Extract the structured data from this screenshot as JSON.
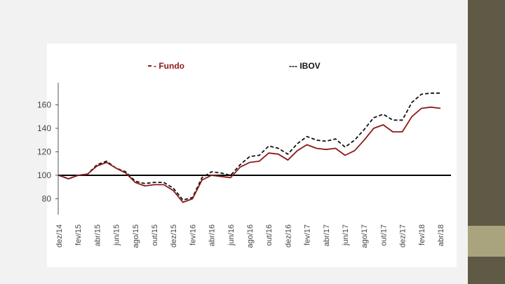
{
  "slide": {
    "background": "#f2f2f2",
    "sidebar_color": "#5f5a45",
    "sidebar_accent_color": "#a9a47d"
  },
  "chart_data": {
    "type": "line",
    "title": "",
    "xlabel": "",
    "ylabel": "",
    "ylim": [
      70,
      180
    ],
    "y_ticks": [
      80,
      100,
      120,
      140,
      160
    ],
    "x_tick_labels": [
      "dez/14",
      "fev/15",
      "abr/15",
      "jun/15",
      "ago/15",
      "out/15",
      "dez/15",
      "fev/16",
      "abr/16",
      "jun/16",
      "ago/16",
      "out/16",
      "dez/16",
      "fev/17",
      "abr/17",
      "jun/17",
      "ago/17",
      "out/17",
      "dez/17",
      "fev/18",
      "abr/18"
    ],
    "reference_line": 100,
    "legend_position": "top",
    "series": [
      {
        "name": "Fundo",
        "color": "#8b1a1a",
        "style": "solid",
        "legend_label": "- Fundo",
        "values": [
          100,
          97,
          100,
          101,
          108,
          111,
          106,
          102,
          94,
          91,
          92,
          92,
          87,
          77,
          80,
          96,
          100,
          99,
          98,
          107,
          111,
          112,
          119,
          118,
          113,
          121,
          126,
          123,
          122,
          123,
          117,
          121,
          130,
          140,
          143,
          137,
          137,
          150,
          157,
          158,
          157
        ]
      },
      {
        "name": "IBOV",
        "color": "#111111",
        "style": "dashed",
        "legend_label": "--- IBOV",
        "values": [
          100,
          97,
          100,
          101,
          109,
          112,
          106,
          103,
          95,
          93,
          94,
          94,
          89,
          79,
          81,
          98,
          103,
          102,
          100,
          109,
          116,
          117,
          125,
          123,
          118,
          127,
          133,
          130,
          129,
          131,
          124,
          130,
          139,
          149,
          152,
          147,
          147,
          162,
          169,
          170,
          170
        ]
      }
    ]
  }
}
